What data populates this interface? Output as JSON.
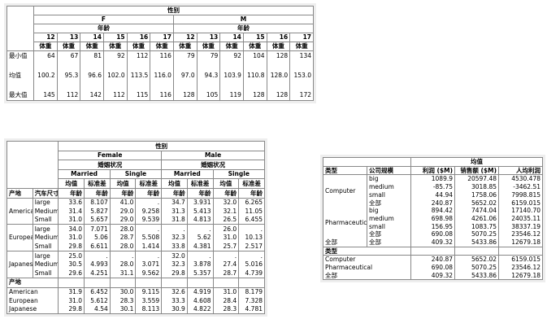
{
  "table1": {
    "header": "性别",
    "groups": [
      "F",
      "M"
    ],
    "subheader": "年龄",
    "ages": [
      "12",
      "13",
      "14",
      "15",
      "16",
      "17",
      "12",
      "13",
      "14",
      "15",
      "16",
      "17"
    ],
    "measure": "体重",
    "rows": [
      {
        "label": "最小值",
        "values": [
          "64",
          "67",
          "81",
          "92",
          "112",
          "116",
          "79",
          "79",
          "92",
          "104",
          "128",
          "134"
        ]
      },
      {
        "label": "",
        "values": [
          "",
          "",
          "",
          "",
          "",
          "",
          "",
          "",
          "",
          "",
          "",
          ""
        ]
      },
      {
        "label": "均值",
        "values": [
          "100.2",
          "95.3",
          "96.6",
          "102.0",
          "113.5",
          "116.0",
          "97.0",
          "94.3",
          "103.9",
          "110.8",
          "128.0",
          "153.0"
        ]
      },
      {
        "label": "",
        "values": [
          "",
          "",
          "",
          "",
          "",
          "",
          "",
          "",
          "",
          "",
          "",
          ""
        ]
      },
      {
        "label": "最大值",
        "values": [
          "145",
          "112",
          "142",
          "112",
          "115",
          "116",
          "128",
          "105",
          "119",
          "128",
          "128",
          "172"
        ]
      }
    ]
  },
  "table2": {
    "header": "性别",
    "groups": [
      "Female",
      "Male"
    ],
    "subheader": "婚姻状况",
    "status": [
      "Married",
      "Single",
      "Married",
      "Single"
    ],
    "stats": [
      "均值",
      "标准差"
    ],
    "col1": "产地",
    "col2": "汽车尺寸",
    "measure": "年龄",
    "rows": [
      {
        "origin": "American",
        "size": "large",
        "values": [
          "33.6",
          "8.107",
          "41.0",
          ".",
          "34.7",
          "3.931",
          "32.0",
          "6.265"
        ]
      },
      {
        "origin": "",
        "size": "Medium",
        "values": [
          "31.4",
          "5.827",
          "29.0",
          "9.258",
          "31.3",
          "5.413",
          "32.1",
          "11.05"
        ]
      },
      {
        "origin": "",
        "size": "Small",
        "values": [
          "31.0",
          "5.657",
          "29.0",
          "9.539",
          "31.8",
          "4.813",
          "26.5",
          "6.455"
        ]
      },
      {
        "origin": "European",
        "size": "large",
        "values": [
          "34.0",
          "7.071",
          "28.0",
          ".",
          ".",
          ".",
          "26.0",
          "."
        ]
      },
      {
        "origin": "",
        "size": "Medium",
        "values": [
          "31.0",
          "5.06",
          "28.7",
          "5.508",
          "32.3",
          "5.62",
          "31.0",
          "10.13"
        ]
      },
      {
        "origin": "",
        "size": "Small",
        "values": [
          "29.8",
          "6.611",
          "28.0",
          "1.414",
          "33.8",
          "4.381",
          "25.7",
          "2.517"
        ]
      },
      {
        "origin": "Japanese",
        "size": "large",
        "values": [
          "25.0",
          ".",
          ".",
          ".",
          "32.0",
          ".",
          ".",
          "."
        ]
      },
      {
        "origin": "",
        "size": "Medium",
        "values": [
          "30.5",
          "4.993",
          "28.0",
          "3.071",
          "32.3",
          "3.878",
          "27.4",
          "5.016"
        ]
      },
      {
        "origin": "",
        "size": "Small",
        "values": [
          "29.6",
          "4.251",
          "31.1",
          "9.562",
          "29.8",
          "5.357",
          "28.7",
          "4.739"
        ]
      }
    ],
    "summary_label": "产地",
    "summary": [
      {
        "label": "American",
        "values": [
          "31.9",
          "6.452",
          "30.0",
          "9.115",
          "32.6",
          "4.919",
          "31.0",
          "8.179"
        ]
      },
      {
        "label": "European",
        "values": [
          "31.0",
          "5.612",
          "28.3",
          "3.559",
          "33.3",
          "4.608",
          "28.4",
          "7.328"
        ]
      },
      {
        "label": "Japanese",
        "values": [
          "29.8",
          "4.54",
          "30.1",
          "8.113",
          "30.9",
          "4.822",
          "28.3",
          "4.781"
        ]
      }
    ]
  },
  "table3": {
    "header": "均值",
    "columns": [
      "类型",
      "公司规模",
      "利润 ($M)",
      "销售额 ($M)",
      "人均利润"
    ],
    "rows": [
      {
        "type": "Computer",
        "size": "big",
        "values": [
          "1089.9",
          "20597.48",
          "4530.478"
        ]
      },
      {
        "type": "",
        "size": "medium",
        "values": [
          "-85.75",
          "3018.85",
          "-3462.51"
        ]
      },
      {
        "type": "",
        "size": "small",
        "values": [
          "44.94",
          "1758.06",
          "7998.815"
        ]
      },
      {
        "type": "",
        "size": "全部",
        "values": [
          "240.87",
          "5652.02",
          "6159.015"
        ]
      },
      {
        "type": "Pharmaceutical",
        "size": "big",
        "values": [
          "894.42",
          "7474.04",
          "17140.70"
        ]
      },
      {
        "type": "",
        "size": "medium",
        "values": [
          "698.98",
          "4261.06",
          "24035.11"
        ]
      },
      {
        "type": "",
        "size": "small",
        "values": [
          "156.95",
          "1083.75",
          "38337.19"
        ]
      },
      {
        "type": "",
        "size": "全部",
        "values": [
          "690.08",
          "5070.25",
          "23546.12"
        ]
      },
      {
        "type": "全部",
        "size": "全部",
        "values": [
          "409.32",
          "5433.86",
          "12679.18"
        ]
      }
    ],
    "summary_label": "类型",
    "summary": [
      {
        "label": "Computer",
        "values": [
          "240.87",
          "5652.02",
          "6159.015"
        ]
      },
      {
        "label": "Pharmaceutical",
        "values": [
          "690.08",
          "5070.25",
          "23546.12"
        ]
      },
      {
        "label": "全部",
        "values": [
          "409.32",
          "5433.86",
          "12679.18"
        ]
      }
    ]
  }
}
